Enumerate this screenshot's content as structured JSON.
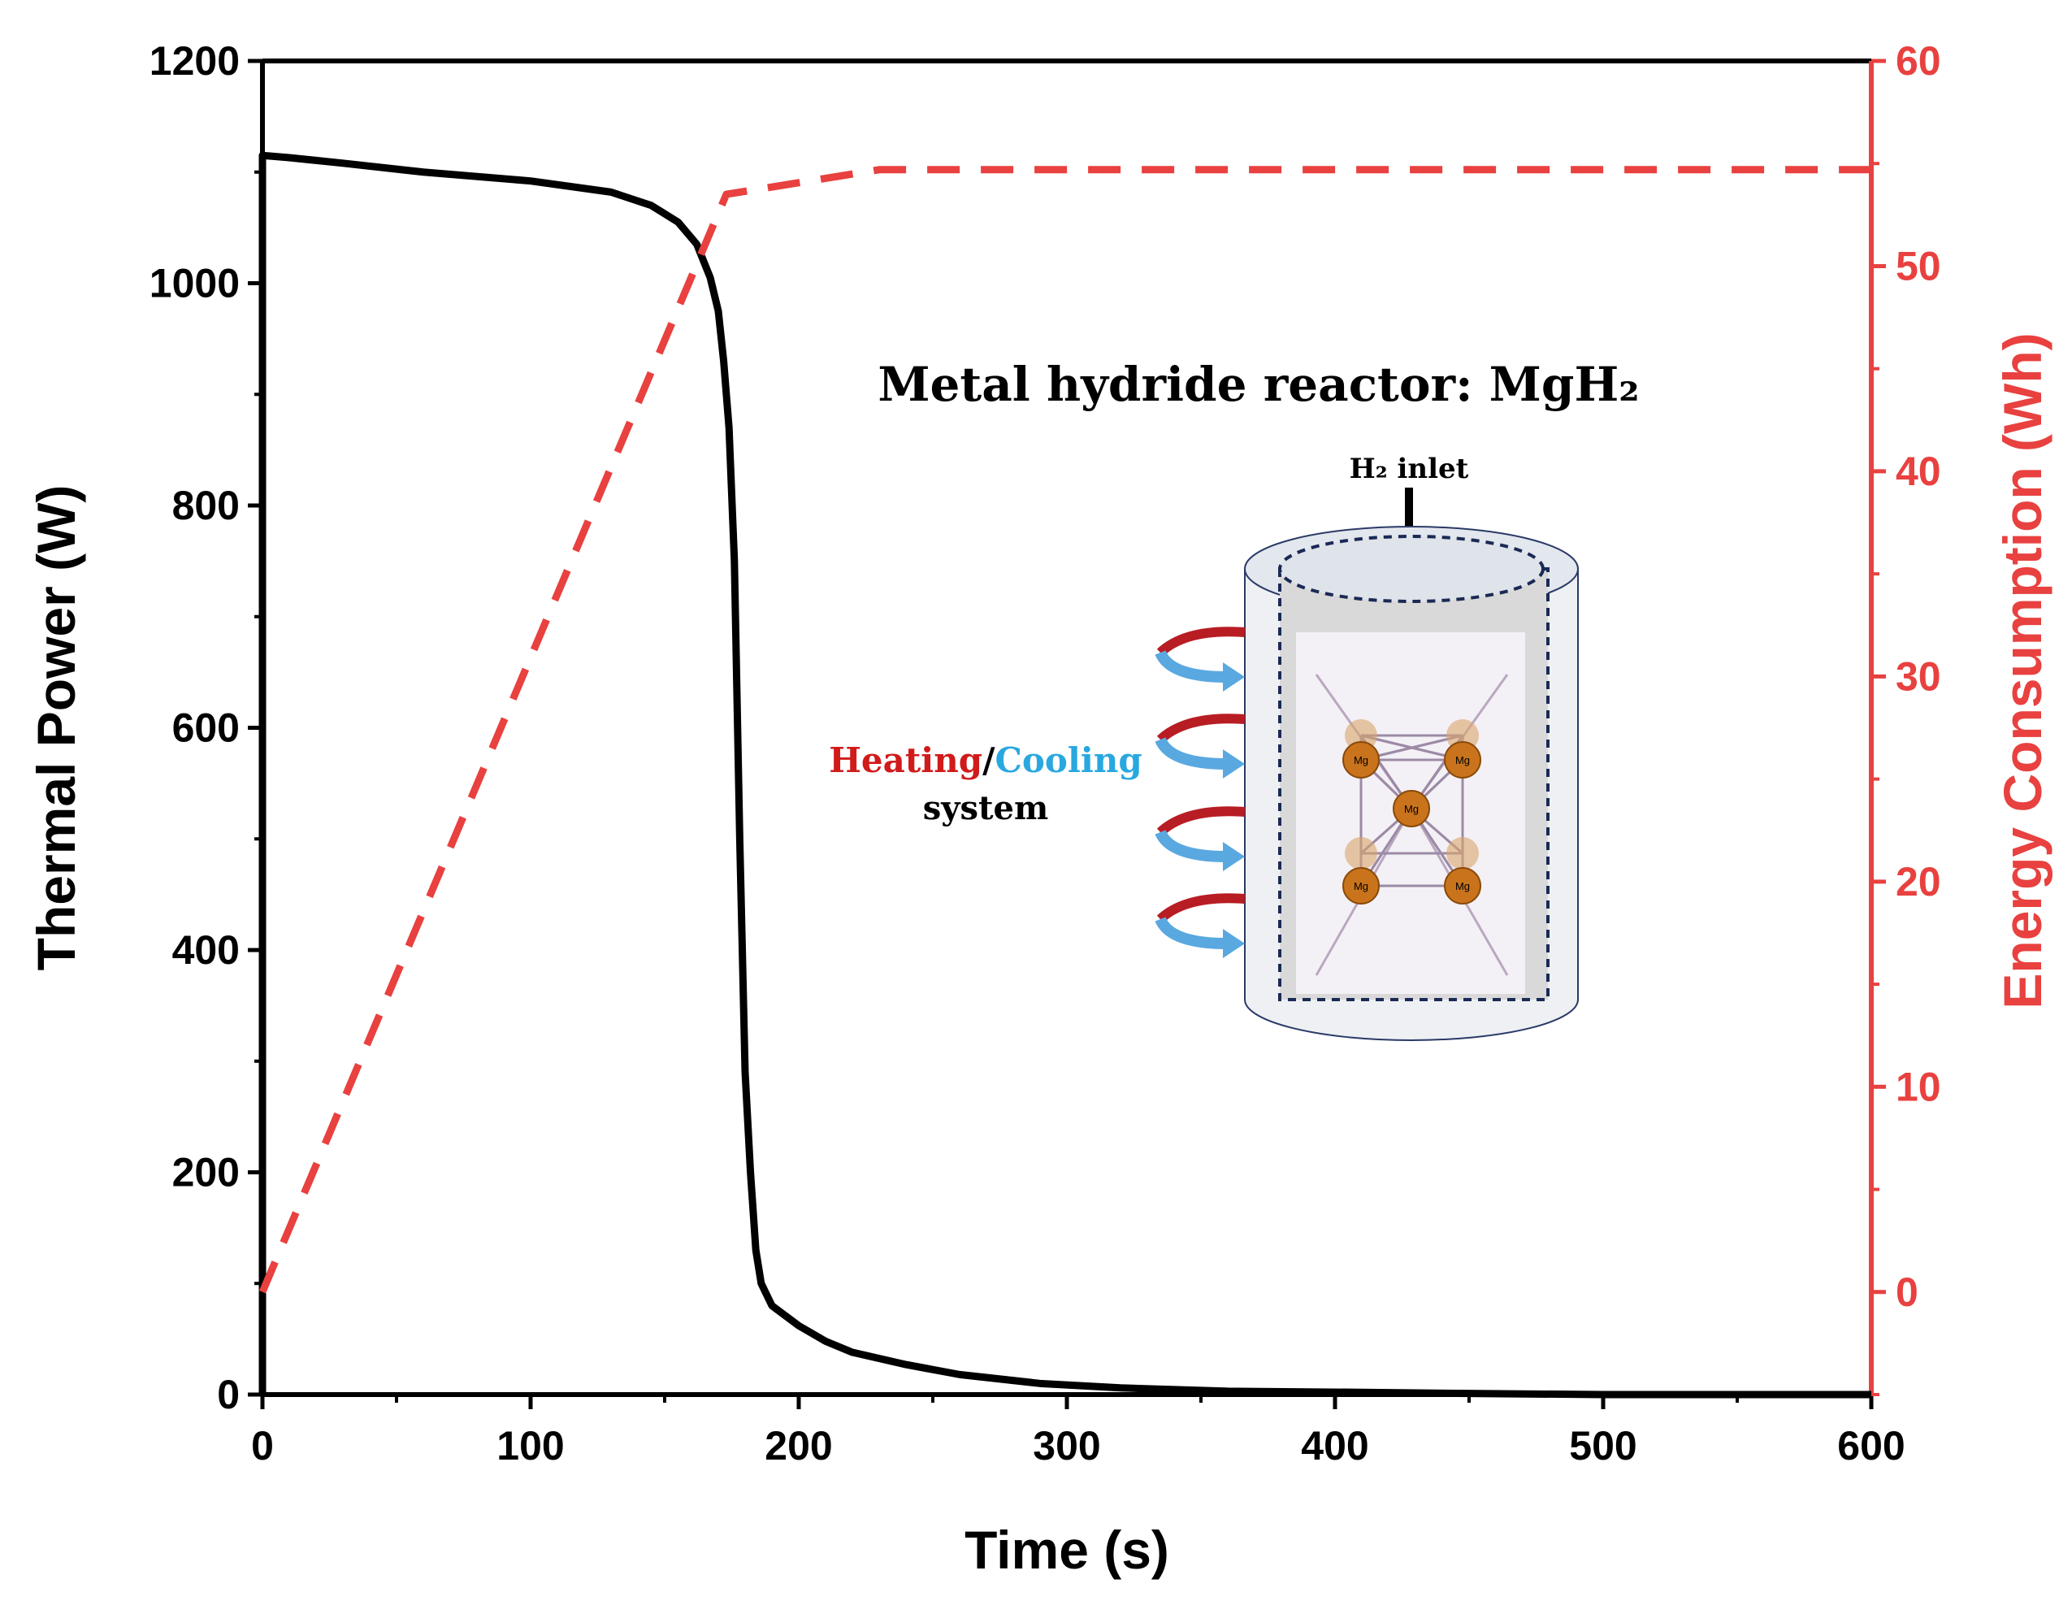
{
  "chart_data": {
    "type": "line",
    "xlabel": "Time (s)",
    "ylabel": "Thermal Power (W)",
    "y2label": "Energy Consumption (Wh)",
    "xlim": [
      0,
      600
    ],
    "xticks": [
      0,
      100,
      200,
      300,
      400,
      500,
      600
    ],
    "ylim": [
      0,
      1200
    ],
    "yticks": [
      0,
      200,
      400,
      600,
      800,
      1000,
      1200
    ],
    "y2lim": [
      -5,
      60
    ],
    "y2ticks": [
      0,
      10,
      20,
      30,
      40,
      50,
      60
    ],
    "y2color": "#e8413f",
    "series": [
      {
        "name": "Thermal Power",
        "color": "#000000",
        "dash": false,
        "x": [
          0,
          0,
          10,
          30,
          60,
          100,
          130,
          145,
          155,
          162,
          167,
          170,
          172,
          174,
          176,
          178,
          180,
          182,
          184,
          186,
          190,
          200,
          210,
          220,
          240,
          260,
          290,
          320,
          360,
          410,
          450,
          500,
          600
        ],
        "values": [
          0,
          1115,
          1113,
          1108,
          1100,
          1092,
          1082,
          1070,
          1055,
          1035,
          1005,
          975,
          930,
          870,
          750,
          500,
          290,
          200,
          130,
          100,
          80,
          62,
          48,
          38,
          27,
          18,
          10,
          6,
          3,
          2,
          1,
          0,
          0
        ]
      },
      {
        "name": "Energy Consumption",
        "color": "#e8413f",
        "dash": true,
        "axis": "y2",
        "x": [
          0,
          173,
          230,
          600
        ],
        "values": [
          0,
          53.5,
          54.7,
          54.7
        ]
      }
    ],
    "annotations": {
      "title": "Metal hydride reactor: MgH₂",
      "inlet": "H₂ inlet",
      "heating": "Heating",
      "slash": "/",
      "cooling": "Cooling",
      "system": "system",
      "atom": "Mg"
    }
  }
}
